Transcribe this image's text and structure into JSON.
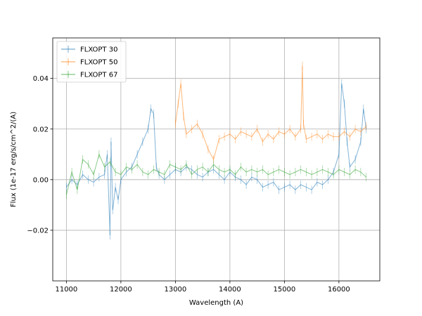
{
  "chart_data": {
    "type": "line",
    "xlabel": "Wavelength (A)",
    "ylabel": "Flux (1e-17 erg/s/cm^2/(A)",
    "xlim": [
      10750,
      16750
    ],
    "ylim": [
      -0.04,
      0.056
    ],
    "x_ticks": [
      11000,
      12000,
      13000,
      14000,
      15000,
      16000
    ],
    "x_tick_labels": [
      "11000",
      "12000",
      "13000",
      "14000",
      "15000",
      "16000"
    ],
    "y_ticks": [
      -0.02,
      0.0,
      0.02,
      0.04
    ],
    "y_tick_labels": [
      "−0.02",
      "0.00",
      "0.02",
      "0.04"
    ],
    "grid": true,
    "legend_position": "top-left",
    "series": [
      {
        "name": "FLXOPT 30",
        "color": "#1f77b4",
        "x": [
          11000,
          11100,
          11200,
          11300,
          11400,
          11500,
          11600,
          11700,
          11750,
          11800,
          11820,
          11850,
          11900,
          11950,
          12000,
          12100,
          12200,
          12300,
          12400,
          12500,
          12550,
          12600,
          12650,
          12700,
          12800,
          12900,
          13000,
          13100,
          13200,
          13300,
          13400,
          13500,
          13600,
          13700,
          13800,
          13900,
          14000,
          14100,
          14200,
          14300,
          14400,
          14500,
          14600,
          14700,
          14800,
          14900,
          15000,
          15100,
          15200,
          15300,
          15400,
          15500,
          15600,
          15700,
          15800,
          15900,
          16000,
          16050,
          16100,
          16150,
          16200,
          16300,
          16400,
          16450,
          16500
        ],
        "y": [
          -0.003,
          0.0,
          -0.002,
          0.002,
          0.0,
          -0.001,
          0.001,
          0.002,
          0.01,
          -0.022,
          0.015,
          -0.012,
          -0.003,
          -0.008,
          0.0,
          0.003,
          0.005,
          0.01,
          0.015,
          0.02,
          0.028,
          0.026,
          0.005,
          0.002,
          0.0,
          0.002,
          0.004,
          0.003,
          0.005,
          0.004,
          0.002,
          0.001,
          0.003,
          0.004,
          0.002,
          0.0,
          0.003,
          0.001,
          0.0,
          -0.002,
          0.001,
          0.0,
          -0.003,
          -0.002,
          -0.001,
          -0.004,
          -0.003,
          -0.002,
          -0.004,
          -0.002,
          -0.003,
          -0.004,
          -0.001,
          -0.002,
          0.0,
          0.003,
          0.01,
          0.038,
          0.03,
          0.015,
          0.005,
          0.008,
          0.015,
          0.028,
          0.02
        ]
      },
      {
        "name": "FLXOPT 50",
        "color": "#ff7f0e",
        "x": [
          13000,
          13050,
          13100,
          13150,
          13200,
          13300,
          13400,
          13500,
          13600,
          13700,
          13800,
          13900,
          14000,
          14100,
          14200,
          14300,
          14400,
          14500,
          14600,
          14700,
          14800,
          14900,
          15000,
          15100,
          15200,
          15300,
          15330,
          15350,
          15400,
          15500,
          15600,
          15700,
          15800,
          15900,
          16000,
          16100,
          16200,
          16300,
          16400,
          16500
        ],
        "y": [
          0.022,
          0.03,
          0.038,
          0.025,
          0.018,
          0.02,
          0.022,
          0.018,
          0.012,
          0.008,
          0.016,
          0.017,
          0.018,
          0.016,
          0.019,
          0.018,
          0.017,
          0.02,
          0.015,
          0.018,
          0.016,
          0.019,
          0.018,
          0.02,
          0.017,
          0.02,
          0.045,
          0.022,
          0.016,
          0.017,
          0.018,
          0.016,
          0.018,
          0.017,
          0.017,
          0.019,
          0.017,
          0.02,
          0.019,
          0.021
        ]
      },
      {
        "name": "FLXOPT 67",
        "color": "#2ca02c",
        "x": [
          11000,
          11100,
          11200,
          11300,
          11400,
          11500,
          11600,
          11700,
          11800,
          11900,
          12000,
          12100,
          12200,
          12300,
          12400,
          12500,
          12600,
          12700,
          12800,
          12900,
          13000,
          13100,
          13200,
          13300,
          13400,
          13500,
          13600,
          13700,
          13800,
          13900,
          14000,
          14100,
          14200,
          14300,
          14400,
          14500,
          14600,
          14700,
          14800,
          14900,
          15000,
          15100,
          15200,
          15300,
          15400,
          15500,
          15600,
          15700,
          15800,
          15900,
          16000,
          16100,
          16200,
          16300,
          16400,
          16500
        ],
        "y": [
          -0.006,
          0.003,
          -0.004,
          0.008,
          0.006,
          0.002,
          0.01,
          0.005,
          0.007,
          0.003,
          0.002,
          0.005,
          0.004,
          0.006,
          0.003,
          0.002,
          0.004,
          0.003,
          0.002,
          0.006,
          0.005,
          0.004,
          0.006,
          0.002,
          0.004,
          0.005,
          0.003,
          0.006,
          0.004,
          0.003,
          0.004,
          0.002,
          0.005,
          0.003,
          0.004,
          0.003,
          0.004,
          0.002,
          0.003,
          0.004,
          0.003,
          0.002,
          0.003,
          0.004,
          0.003,
          0.002,
          0.003,
          0.004,
          0.003,
          0.002,
          0.004,
          0.003,
          0.002,
          0.004,
          0.003,
          0.001
        ]
      }
    ]
  }
}
